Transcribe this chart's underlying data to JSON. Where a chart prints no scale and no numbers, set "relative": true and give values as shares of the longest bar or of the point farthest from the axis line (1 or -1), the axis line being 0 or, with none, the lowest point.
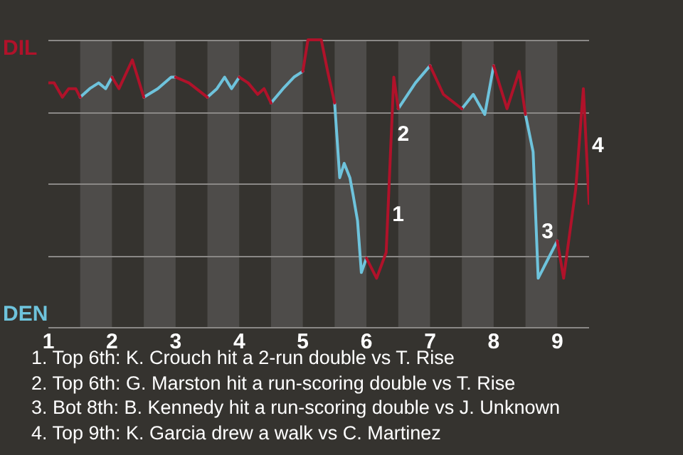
{
  "chart_data": {
    "type": "line",
    "relative": true,
    "x": [
      1,
      1.09,
      1.22,
      1.32,
      1.43,
      1.5,
      1.65,
      1.79,
      1.9,
      2,
      2.11,
      2.32,
      2.5,
      2.72,
      2.93,
      3,
      3.21,
      3.5,
      3.65,
      3.77,
      3.88,
      4,
      4.14,
      4.29,
      4.39,
      4.5,
      4.69,
      4.86,
      5,
      5.08,
      5.29,
      5.39,
      5.5,
      5.58,
      5.65,
      5.74,
      5.79,
      5.86,
      5.92,
      6,
      6.16,
      6.31,
      6.43,
      6.5,
      6.77,
      7,
      7.21,
      7.5,
      7.68,
      7.86,
      8,
      8.21,
      8.4,
      8.5,
      8.62,
      8.7,
      9,
      9.1,
      9.29,
      9.41,
      9.5
    ],
    "series": [
      {
        "name": "DIL",
        "color": "#b0122a",
        "values": [
          0.85,
          0.85,
          0.8,
          0.83,
          0.83,
          0.8,
          null,
          null,
          null,
          0.87,
          0.83,
          0.93,
          0.8,
          null,
          null,
          0.87,
          0.85,
          0.8,
          null,
          null,
          null,
          0.87,
          0.85,
          0.81,
          0.83,
          0.78,
          null,
          null,
          0.89,
          1,
          1,
          0.89,
          0.78,
          null,
          null,
          null,
          null,
          null,
          null,
          0.24,
          0.17,
          0.26,
          0.87,
          0.76,
          null,
          0.91,
          0.81,
          0.76,
          null,
          null,
          0.91,
          0.76,
          0.89,
          0.74,
          null,
          null,
          0.3,
          0.17,
          0.48,
          0.83,
          0.43
        ]
      },
      {
        "name": "DEN",
        "color": "#6ec3dc",
        "values": [
          null,
          null,
          null,
          null,
          null,
          0.8,
          0.83,
          0.85,
          0.83,
          0.87,
          null,
          null,
          0.8,
          0.83,
          0.87,
          0.87,
          null,
          0.8,
          0.83,
          0.87,
          0.83,
          0.87,
          null,
          null,
          null,
          0.78,
          0.83,
          0.87,
          0.89,
          null,
          null,
          null,
          0.78,
          0.52,
          0.57,
          0.52,
          0.46,
          0.37,
          0.19,
          0.24,
          null,
          null,
          null,
          0.76,
          0.85,
          0.91,
          null,
          0.76,
          0.81,
          0.74,
          0.91,
          null,
          null,
          0.74,
          0.61,
          0.17,
          0.3,
          null,
          null,
          null,
          null
        ]
      }
    ],
    "xlim": [
      1,
      9.5
    ],
    "xticks": [
      1,
      2,
      3,
      4,
      5,
      6,
      7,
      8,
      9
    ],
    "grid": "y",
    "legend": "left",
    "marker": "none",
    "line_style": "solid",
    "bands": [
      {
        "axis": "x",
        "from": 1.5,
        "to": 2,
        "color": "#4e4c4a"
      },
      {
        "axis": "x",
        "from": 2.5,
        "to": 3,
        "color": "#4e4c4a"
      },
      {
        "axis": "x",
        "from": 3.5,
        "to": 4,
        "color": "#4e4c4a"
      },
      {
        "axis": "x",
        "from": 4.5,
        "to": 5,
        "color": "#4e4c4a"
      },
      {
        "axis": "x",
        "from": 5.5,
        "to": 6,
        "color": "#4e4c4a"
      },
      {
        "axis": "x",
        "from": 6.5,
        "to": 7,
        "color": "#4e4c4a"
      },
      {
        "axis": "x",
        "from": 7.5,
        "to": 8,
        "color": "#4e4c4a"
      },
      {
        "axis": "x",
        "from": 8.5,
        "to": 9,
        "color": "#4e4c4a"
      }
    ],
    "annotations": [
      {
        "text": "1",
        "x": 6.36,
        "y": 0.39
      },
      {
        "text": "2",
        "x": 6.44,
        "y": 0.67
      },
      {
        "text": "3",
        "x": 8.71,
        "y": 0.33
      },
      {
        "text": "4",
        "x": 9.5,
        "y": 0.63
      },
      "1. Top 6th: K. Crouch hit a 2-run double vs T. Rise",
      "2. Top 6th: G. Marston hit a run-scoring double vs T. Rise",
      "3. Bot 8th: B. Kennedy hit a run-scoring double vs J. Unknown",
      "4. Top 9th: K. Garcia drew a walk vs C. Martinez"
    ]
  }
}
